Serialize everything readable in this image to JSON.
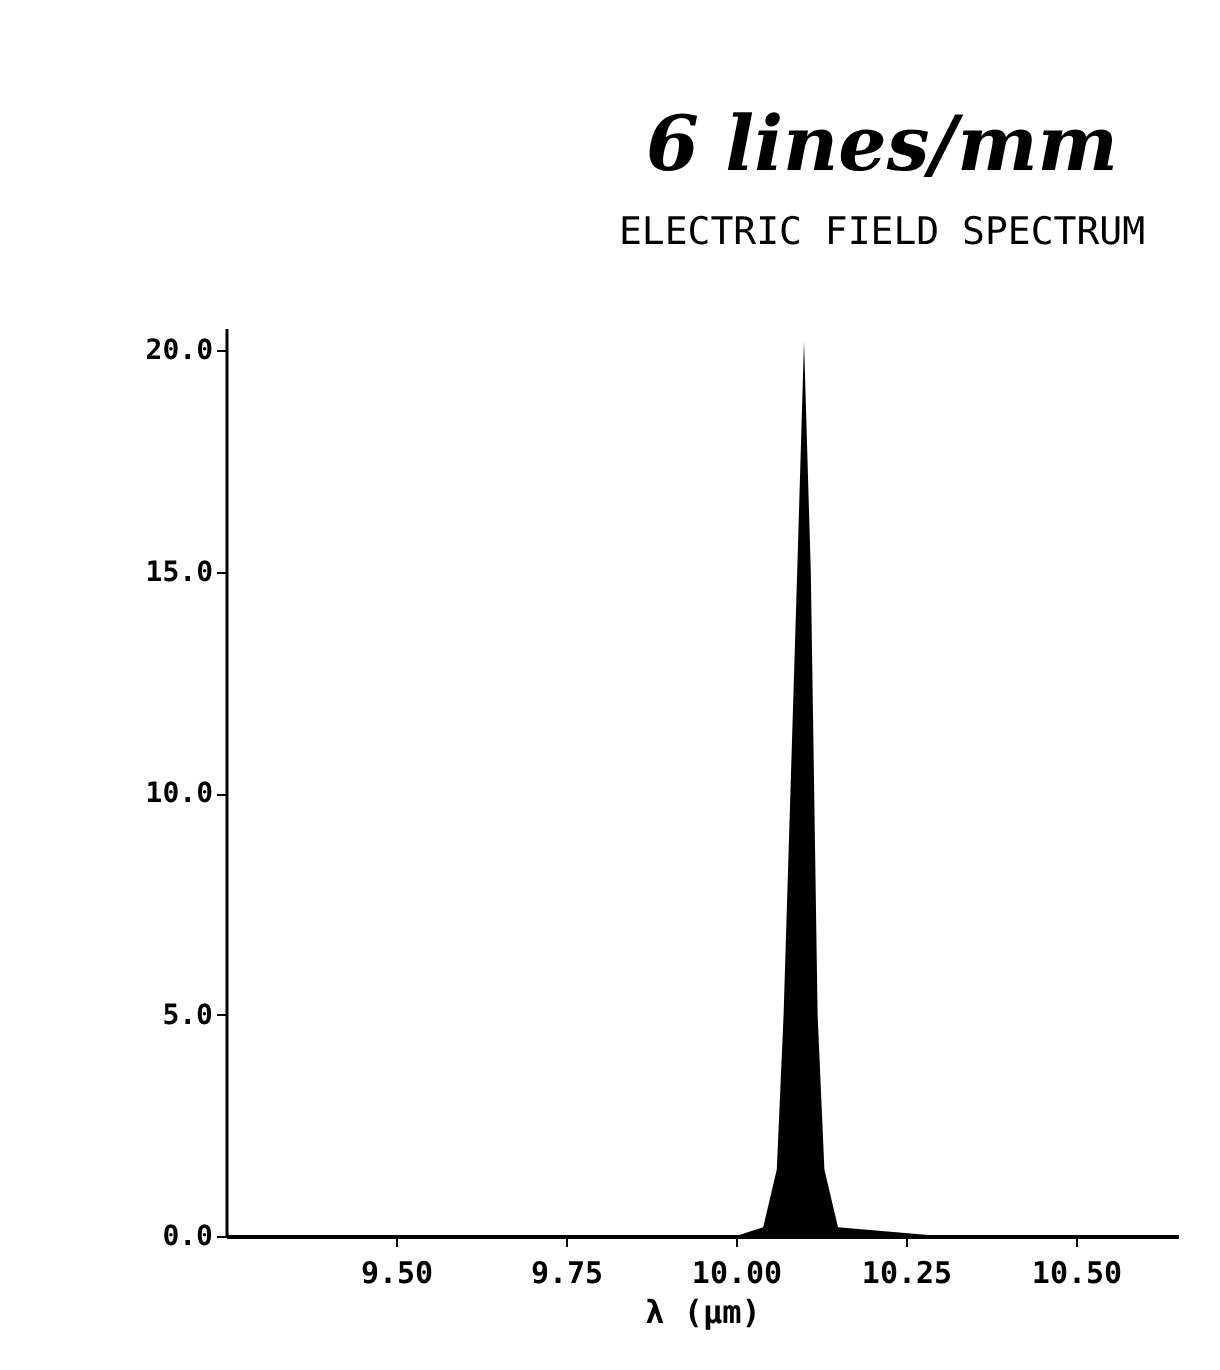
{
  "chart_data": {
    "type": "area",
    "title": "6 lines/mm",
    "subtitle": "ELECTRIC FIELD SPECTRUM",
    "xlabel": "λ (μm)",
    "x": [
      9.25,
      9.5,
      10.0,
      10.04,
      10.06,
      10.07,
      10.08,
      10.09,
      10.1,
      10.11,
      10.115,
      10.12,
      10.13,
      10.15,
      10.3,
      10.65
    ],
    "series": [
      {
        "color": "#000000",
        "values": [
          0,
          0,
          0,
          0.2,
          1.5,
          5,
          10,
          15,
          20.2,
          15,
          10,
          5,
          1.5,
          0.2,
          0,
          0
        ]
      }
    ],
    "xlim": [
      9.25,
      10.65
    ],
    "xticks": [
      {
        "value": 9.5,
        "label": "9.50"
      },
      {
        "value": 9.75,
        "label": "9.75"
      },
      {
        "value": 10.0,
        "label": "10.00"
      },
      {
        "value": 10.25,
        "label": "10.25"
      },
      {
        "value": 10.5,
        "label": "10.50"
      }
    ],
    "ylim": [
      0,
      20.5
    ],
    "yticks": [
      {
        "value": 0,
        "label": "0.0"
      },
      {
        "value": 5,
        "label": "5.0"
      },
      {
        "value": 10,
        "label": "10.0"
      },
      {
        "value": 15,
        "label": "15.0"
      },
      {
        "value": 20,
        "label": "20.0"
      }
    ],
    "grid": false
  }
}
